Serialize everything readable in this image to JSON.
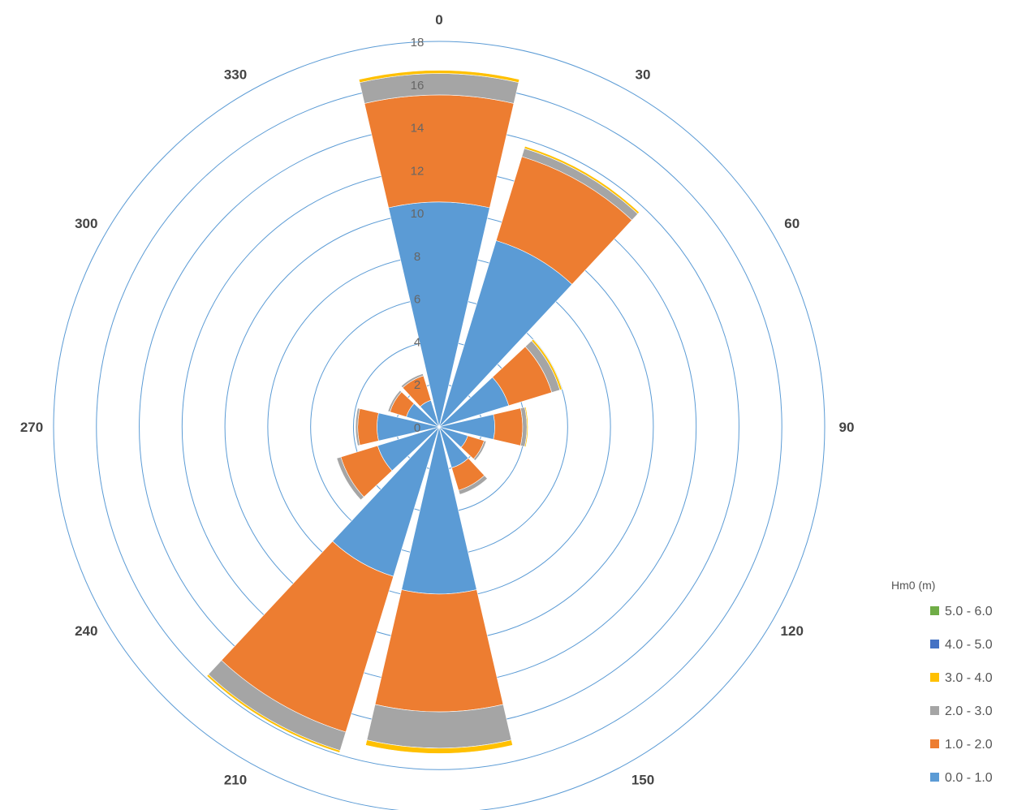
{
  "chart_data": {
    "type": "rose",
    "title": "",
    "radial_axis": {
      "min": 0,
      "max": 18,
      "ticks": [
        0,
        2,
        4,
        6,
        8,
        10,
        12,
        14,
        16,
        18
      ],
      "tick_labels": [
        "0",
        "2",
        "4",
        "6",
        "8",
        "10",
        "12",
        "14",
        "16",
        "18"
      ]
    },
    "direction_labels": [
      "0",
      "30",
      "60",
      "90",
      "120",
      "150",
      "210",
      "240",
      "270",
      "300",
      "330"
    ],
    "legend": {
      "title": "Hm0 (m)",
      "placement": "bottom-right",
      "entries": [
        {
          "label": "5.0 - 6.0",
          "color": "#70ad47"
        },
        {
          "label": "4.0 - 5.0",
          "color": "#4472c4"
        },
        {
          "label": "3.0 - 4.0",
          "color": "#ffc000"
        },
        {
          "label": "2.0 - 3.0",
          "color": "#a5a5a5"
        },
        {
          "label": "1.0 - 2.0",
          "color": "#ed7d31"
        },
        {
          "label": "0.0 - 1.0",
          "color": "#5b9bd5"
        }
      ]
    },
    "sector_width_deg": 30,
    "sectors_deg": [
      0,
      30,
      60,
      90,
      120,
      150,
      180,
      210,
      240,
      270,
      300,
      330
    ],
    "series": [
      {
        "name": "0.0 - 1.0",
        "color": "#5b9bd5",
        "values": [
          10.5,
          9.1,
          3.4,
          2.6,
          1.4,
          2.0,
          7.8,
          7.3,
          3.0,
          2.9,
          1.6,
          1.3
        ]
      },
      {
        "name": "1.0 - 2.0",
        "color": "#ed7d31",
        "values": [
          5.0,
          4.1,
          2.1,
          1.3,
          0.8,
          1.1,
          5.5,
          7.6,
          1.8,
          0.9,
          0.8,
          1.2
        ]
      },
      {
        "name": "2.0 - 3.0",
        "color": "#a5a5a5",
        "values": [
          1.0,
          0.4,
          0.4,
          0.2,
          0.1,
          0.2,
          1.7,
          0.9,
          0.2,
          0.1,
          0.1,
          0.1
        ]
      },
      {
        "name": "3.0 - 4.0",
        "color": "#ffc000",
        "values": [
          0.15,
          0.1,
          0.1,
          0.05,
          0.0,
          0.0,
          0.25,
          0.1,
          0.0,
          0.0,
          0.0,
          0.0
        ]
      },
      {
        "name": "4.0 - 5.0",
        "color": "#4472c4",
        "values": [
          0,
          0,
          0,
          0,
          0,
          0,
          0,
          0,
          0,
          0,
          0,
          0
        ]
      },
      {
        "name": "5.0 - 6.0",
        "color": "#70ad47",
        "values": [
          0,
          0,
          0,
          0,
          0,
          0,
          0,
          0,
          0,
          0,
          0,
          0
        ]
      }
    ],
    "grid": true
  }
}
